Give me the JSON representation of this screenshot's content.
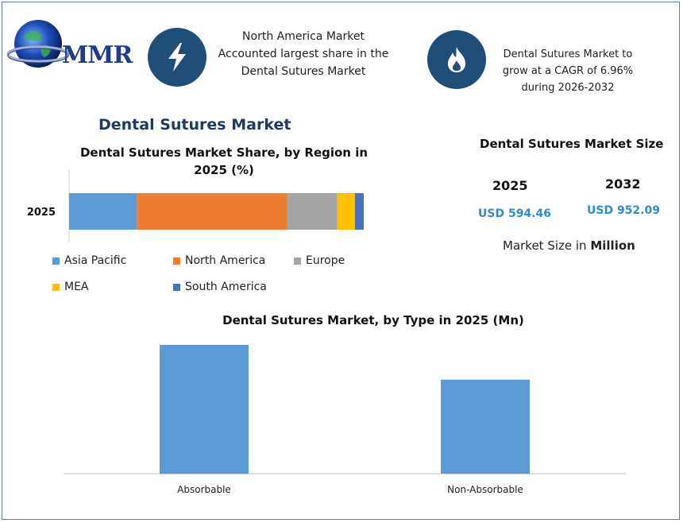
{
  "brand": {
    "logo_text": "MMR"
  },
  "highlights": [
    {
      "icon": "lightning-icon",
      "text_lines": [
        "North America Market",
        "Accounted largest share in the",
        "Dental Sutures Market"
      ]
    },
    {
      "icon": "flame-icon",
      "text_lines": [
        "Dental Sutures Market to",
        "grow at a CAGR of 6.96%",
        "during 2026-2032"
      ]
    }
  ],
  "main_title": "Dental Sutures Market",
  "market_size": {
    "title": "Dental Sutures Market Size",
    "entries": [
      {
        "year": "2025",
        "value": "USD 594.46"
      },
      {
        "year": "2032",
        "value": "USD 952.09"
      }
    ],
    "note_prefix": "Market Size in ",
    "note_unit": "Million"
  },
  "colors": {
    "accent_blue": "#1f4e79",
    "value_blue": "#2e8bd0"
  },
  "chart_data": [
    {
      "type": "bar",
      "orientation": "horizontal",
      "stacked": true,
      "title_lines": [
        "Dental Sutures Market Share, by Region in",
        "2025 (%)"
      ],
      "categories": [
        "2025"
      ],
      "xlim": [
        0,
        100
      ],
      "grid": false,
      "legend_position": "bottom",
      "series": [
        {
          "name": "Asia Pacific",
          "color": "#5b9bd5",
          "values": [
            23
          ]
        },
        {
          "name": "North America",
          "color": "#ed7d31",
          "values": [
            51
          ]
        },
        {
          "name": "Europe",
          "color": "#a5a5a5",
          "values": [
            17
          ]
        },
        {
          "name": "MEA",
          "color": "#ffc000",
          "values": [
            6
          ]
        },
        {
          "name": "South America",
          "color": "#4472c4",
          "values": [
            3
          ]
        }
      ]
    },
    {
      "type": "bar",
      "title": "Dental Sutures Market, by Type in 2025 (Mn)",
      "categories": [
        "Absorbable",
        "Non-Absorbable"
      ],
      "values": [
        100,
        73
      ],
      "ylim": [
        0,
        100
      ],
      "grid": false,
      "color": "#5b9bd5"
    }
  ]
}
